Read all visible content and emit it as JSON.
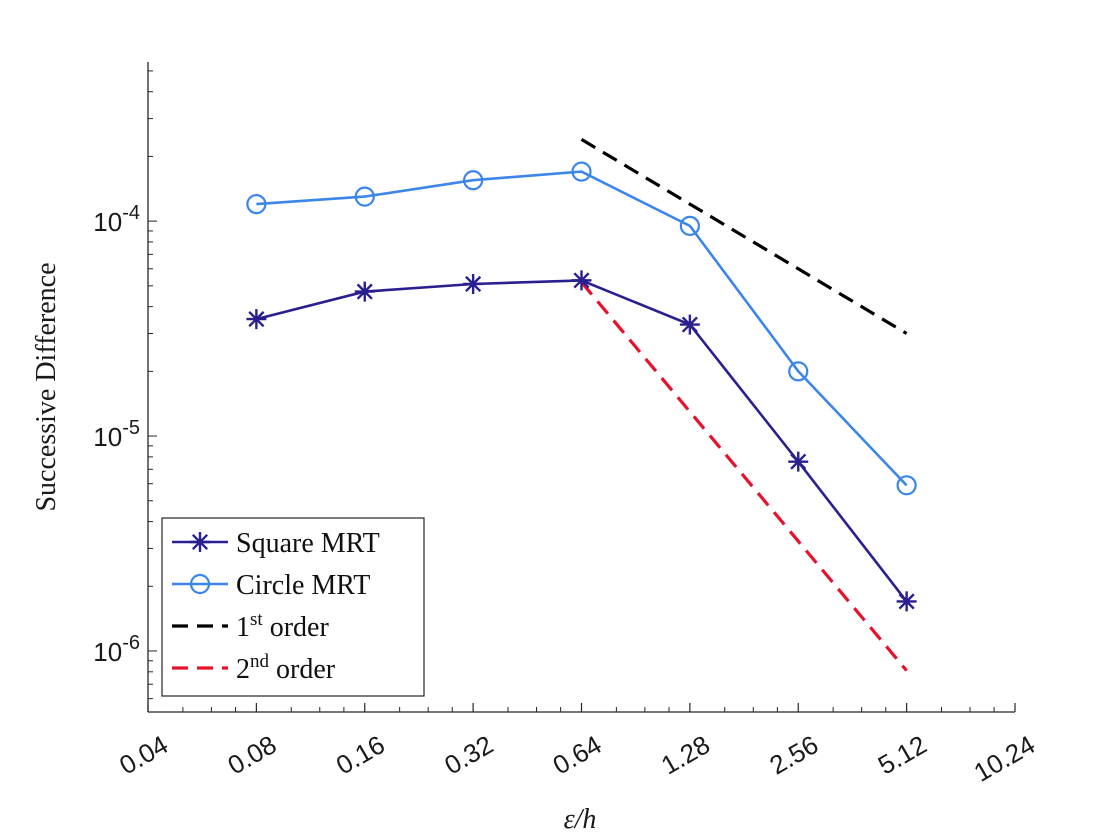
{
  "chart_data": {
    "type": "line",
    "title": "",
    "xlabel": "ε/h",
    "ylabel": "Successive Difference",
    "x_scale": "log2",
    "y_scale": "log10",
    "xlim": [
      0.04,
      10.24
    ],
    "ylim": [
      5.2e-07,
      0.00055
    ],
    "x_ticks": [
      0.04,
      0.08,
      0.16,
      0.32,
      0.64,
      1.28,
      2.56,
      5.12,
      10.24
    ],
    "x_tick_labels": [
      "0.04",
      "0.08",
      "0.16",
      "0.32",
      "0.64",
      "1.28",
      "2.56",
      "5.12",
      "10.24"
    ],
    "y_ticks": [
      {
        "value": 0.0001,
        "base": "10",
        "exp": "-4"
      },
      {
        "value": 1e-05,
        "base": "10",
        "exp": "-5"
      },
      {
        "value": 1e-06,
        "base": "10",
        "exp": "-6"
      }
    ],
    "grid": false,
    "legend_position": "bottom-left",
    "series": [
      {
        "name": "Square MRT",
        "legend_label": "Square MRT",
        "color": "#2a1f8f",
        "marker": "asterisk",
        "dashed": false,
        "x": [
          0.08,
          0.16,
          0.32,
          0.64,
          1.28,
          2.56,
          5.12
        ],
        "y": [
          3.5e-05,
          4.7e-05,
          5.1e-05,
          5.3e-05,
          3.3e-05,
          7.6e-06,
          1.7e-06
        ]
      },
      {
        "name": "Circle MRT",
        "legend_label": "Circle MRT",
        "color": "#3b86e8",
        "marker": "circle",
        "dashed": false,
        "x": [
          0.08,
          0.16,
          0.32,
          0.64,
          1.28,
          2.56,
          5.12
        ],
        "y": [
          0.00012,
          0.00013,
          0.000155,
          0.00017,
          9.5e-05,
          2e-05,
          5.9e-06
        ]
      },
      {
        "name": "1st order",
        "legend_label": "1",
        "legend_sup": "st",
        "legend_suffix": " order",
        "color": "#000000",
        "marker": "none",
        "dashed": true,
        "x": [
          0.64,
          5.12
        ],
        "y": [
          0.00024,
          3e-05
        ]
      },
      {
        "name": "2nd order",
        "legend_label": "2",
        "legend_sup": "nd",
        "legend_suffix": " order",
        "color": "#e8102a",
        "marker": "none",
        "dashed": true,
        "x": [
          0.64,
          5.12
        ],
        "y": [
          5.2e-05,
          8.1e-07
        ]
      }
    ]
  }
}
